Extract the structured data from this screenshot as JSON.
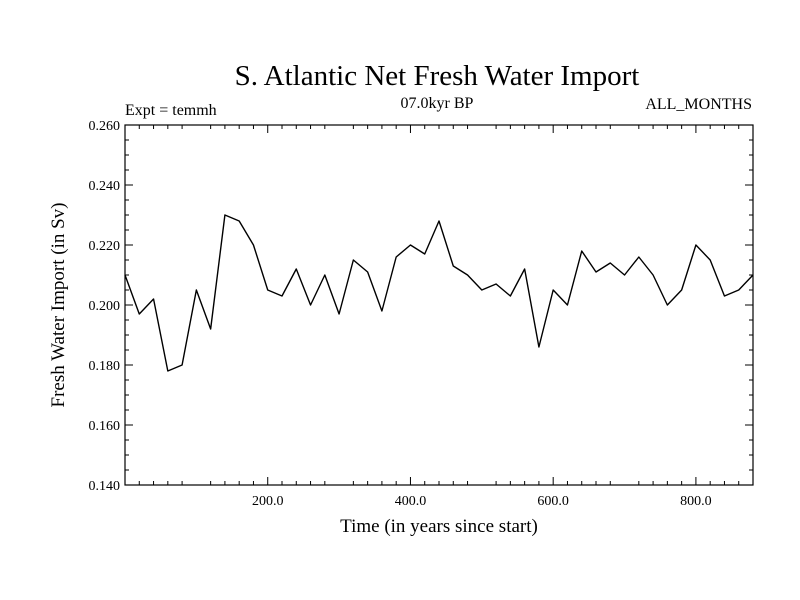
{
  "chart_data": {
    "type": "line",
    "title": "S. Atlantic Net Fresh Water Import",
    "subtitle_left": "Expt = temmh",
    "subtitle_center": "07.0kyr BP",
    "subtitle_right": "ALL_MONTHS",
    "xlabel": "Time (in years since start)",
    "ylabel": "Fresh Water Import (in Sv)",
    "xlim": [
      0,
      880
    ],
    "ylim": [
      0.14,
      0.26
    ],
    "x_ticks": [
      {
        "value": 200,
        "label": "200.0"
      },
      {
        "value": 400,
        "label": "400.0"
      },
      {
        "value": 600,
        "label": "600.0"
      },
      {
        "value": 800,
        "label": "800.0"
      }
    ],
    "y_ticks": [
      {
        "value": 0.14,
        "label": "0.140"
      },
      {
        "value": 0.16,
        "label": "0.160"
      },
      {
        "value": 0.18,
        "label": "0.180"
      },
      {
        "value": 0.2,
        "label": "0.200"
      },
      {
        "value": 0.22,
        "label": "0.220"
      },
      {
        "value": 0.24,
        "label": "0.240"
      },
      {
        "value": 0.26,
        "label": "0.260"
      }
    ],
    "series": [
      {
        "name": "Net Fresh Water Import",
        "color": "#000000",
        "x": [
          0,
          20,
          40,
          60,
          80,
          100,
          120,
          140,
          160,
          180,
          200,
          220,
          240,
          260,
          280,
          300,
          320,
          340,
          360,
          380,
          400,
          420,
          440,
          460,
          480,
          500,
          520,
          540,
          560,
          580,
          600,
          620,
          640,
          660,
          680,
          700,
          720,
          740,
          760,
          780,
          800,
          820,
          840,
          860,
          880
        ],
        "values": [
          0.21,
          0.197,
          0.202,
          0.178,
          0.18,
          0.205,
          0.192,
          0.23,
          0.228,
          0.22,
          0.205,
          0.203,
          0.212,
          0.2,
          0.21,
          0.197,
          0.215,
          0.211,
          0.198,
          0.216,
          0.22,
          0.217,
          0.228,
          0.213,
          0.21,
          0.205,
          0.207,
          0.203,
          0.212,
          0.186,
          0.205,
          0.2,
          0.218,
          0.211,
          0.214,
          0.21,
          0.216,
          0.21,
          0.2,
          0.205,
          0.22,
          0.215,
          0.203,
          0.205,
          0.21
        ]
      }
    ]
  }
}
